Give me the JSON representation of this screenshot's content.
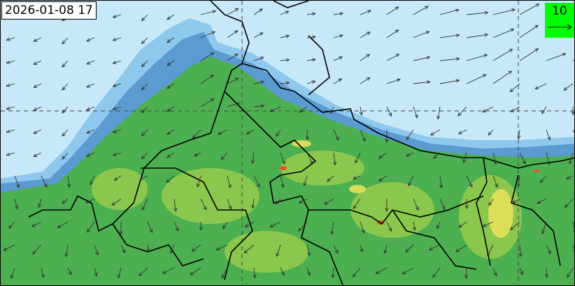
{
  "map": {
    "timestamp": "2026-01-08 17",
    "legend": {
      "reference_vector_value": "10",
      "background": "#00ff00"
    },
    "colors": {
      "ocean_low": "#c6e8f8",
      "shade1": "#8ec8ec",
      "shade2": "#5b9bd2",
      "land_green": "#4caf50",
      "land_light": "#9acd4c",
      "yellow": "#e6e05a",
      "hotspot": "#e8502a"
    }
  }
}
